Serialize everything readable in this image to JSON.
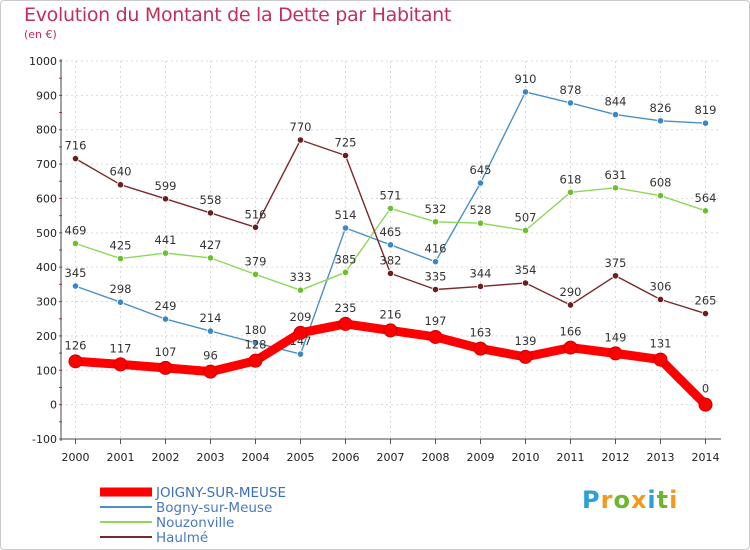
{
  "title": "Evolution du Montant de la Dette par Habitant",
  "subtitle": "(en €)",
  "logo": {
    "letters": [
      "P",
      "r",
      "o",
      "x",
      "i",
      "t",
      "i"
    ],
    "colors": [
      "#2a9fd8",
      "#f39a1e",
      "#6bb82e",
      "#f39a1e",
      "#2a9fd8",
      "#6bb82e",
      "#f39a1e"
    ]
  },
  "chart_data": {
    "type": "line",
    "x": [
      "2000",
      "2001",
      "2002",
      "2003",
      "2004",
      "2005",
      "2006",
      "2007",
      "2008",
      "2009",
      "2010",
      "2011",
      "2012",
      "2013",
      "2014"
    ],
    "ylim": [
      -100,
      1000
    ],
    "yticks": [
      -100,
      0,
      100,
      200,
      300,
      400,
      500,
      600,
      700,
      800,
      900,
      1000
    ],
    "grid": true,
    "legend_position": "bottom-left",
    "series": [
      {
        "name": "JOIGNY-SUR-MEUSE",
        "color": "#ff0000",
        "emphasis": true,
        "values": [
          126,
          117,
          107,
          96,
          128,
          209,
          235,
          216,
          197,
          163,
          139,
          166,
          149,
          131,
          0
        ]
      },
      {
        "name": "Bogny-sur-Meuse",
        "color": "#4a90c8",
        "marker": "#3a86c6",
        "values": [
          345,
          298,
          249,
          214,
          180,
          147,
          514,
          465,
          416,
          645,
          910,
          878,
          844,
          826,
          819
        ]
      },
      {
        "name": "Nouzonville",
        "color": "#8fd65a",
        "marker": "#6cc02e",
        "values": [
          469,
          425,
          441,
          427,
          379,
          333,
          385,
          571,
          532,
          528,
          507,
          618,
          631,
          608,
          564
        ]
      },
      {
        "name": "Haulmé",
        "color": "#7a2a2a",
        "marker": "#6a1e1e",
        "values": [
          716,
          640,
          599,
          558,
          516,
          770,
          725,
          382,
          335,
          344,
          354,
          290,
          375,
          306,
          265
        ]
      }
    ]
  }
}
